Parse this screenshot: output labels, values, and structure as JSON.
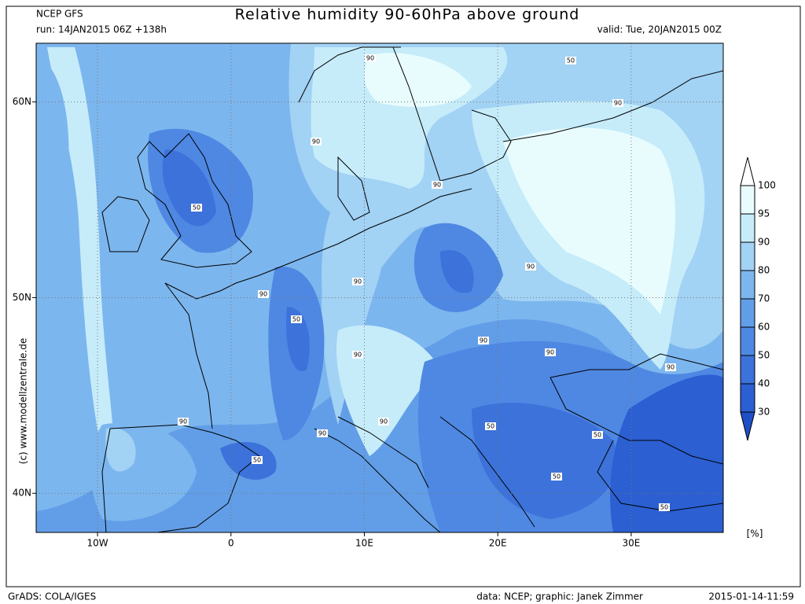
{
  "header": {
    "model": "NCEP GFS",
    "run": "run: 14JAN2015 06Z +138h",
    "title": "Relative humidity 90-60hPa above ground",
    "valid": "valid: Tue, 20JAN2015 00Z"
  },
  "map": {
    "lon_lim": [
      -14.6,
      36.9
    ],
    "lat_lim": [
      38,
      63
    ],
    "lon_ticks": [
      {
        "value": -10,
        "label": "10W"
      },
      0,
      {
        "value": 10,
        "label": "10E"
      },
      {
        "value": 20,
        "label": "20E"
      },
      {
        "value": 30,
        "label": "30E"
      }
    ],
    "lat_ticks": [
      {
        "value": 60,
        "label": "60N"
      },
      {
        "value": 50,
        "label": "50N"
      },
      {
        "value": 40,
        "label": "40N"
      }
    ],
    "contour_labels": [
      90,
      50,
      90,
      90,
      90,
      50,
      90,
      90,
      90,
      50,
      90,
      90,
      90,
      90,
      90,
      90,
      50,
      50,
      90,
      50,
      50,
      50
    ]
  },
  "colorbar": {
    "levels": [
      30,
      40,
      50,
      60,
      70,
      80,
      90,
      95,
      100
    ],
    "colors": [
      "#1f4fc6",
      "#2b5fd2",
      "#3c72da",
      "#4f88e2",
      "#629ee8",
      "#7cb6ee",
      "#a2d2f4",
      "#c6ecfa",
      "#e9fcfd",
      "#ffffff"
    ],
    "unit": "[%]"
  },
  "footer": {
    "credit": "(c) www.modellzentrale.de",
    "software": "GrADS: COLA/IGES",
    "source": "data: NCEP; graphic: Janek Zimmer",
    "timestamp": "2015-01-14-11:59"
  }
}
